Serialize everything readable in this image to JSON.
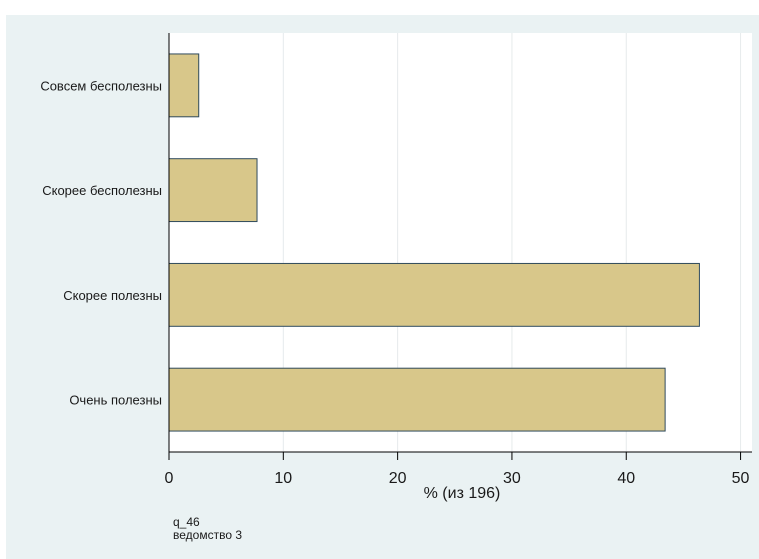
{
  "chart_data": {
    "type": "bar",
    "orientation": "horizontal",
    "title": "",
    "categories": [
      "Совсем бесполезны",
      "Скорее бесполезны",
      "Скорее полезны",
      "Очень полезны"
    ],
    "values": [
      2.6,
      7.7,
      46.4,
      43.4
    ],
    "xlabel": "% (из 196)",
    "ylabel": "",
    "xlim": [
      0,
      51
    ],
    "xticks": [
      0,
      10,
      20,
      30,
      40,
      50
    ],
    "grid": true,
    "colors": {
      "bar_fill": "#d8c78a",
      "bar_stroke": "#2f4a5c",
      "grid": "#ffffff",
      "axis": "#000000",
      "plot_bg": "#ffffff",
      "panel_bg": "#eaf2f3"
    }
  },
  "notes": {
    "line1": "q_46",
    "line2": "ведомство 3"
  }
}
